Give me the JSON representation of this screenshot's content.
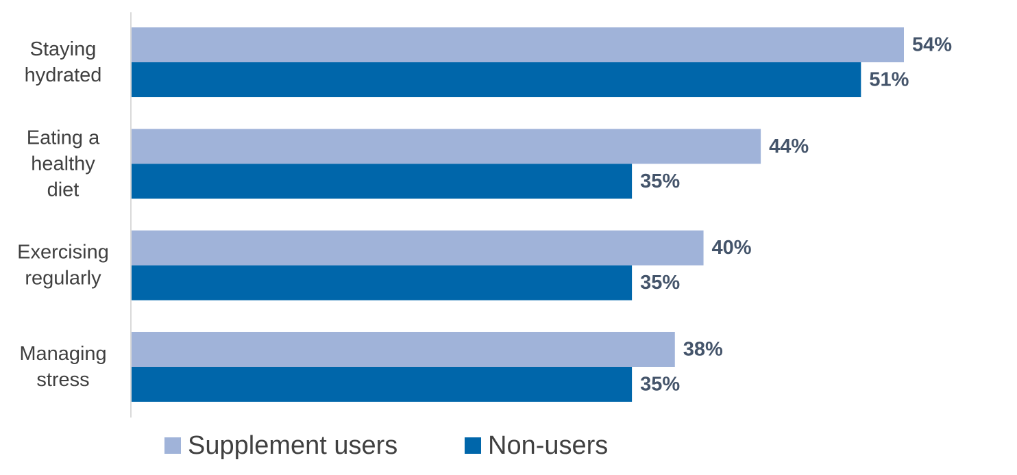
{
  "chart_data": {
    "type": "bar",
    "orientation": "horizontal",
    "categories": [
      [
        "Staying",
        "hydrated"
      ],
      [
        "Eating a",
        "healthy",
        "diet"
      ],
      [
        "Exercising",
        "regularly"
      ],
      [
        "Managing",
        "stress"
      ]
    ],
    "series": [
      {
        "name": "Supplement users",
        "color": "#A0B3D9",
        "values": [
          54,
          44,
          40,
          38
        ],
        "labels": [
          "54%",
          "44%",
          "40%",
          "38%"
        ]
      },
      {
        "name": "Non-users",
        "color": "#0066AA",
        "values": [
          51,
          35,
          35,
          35
        ],
        "labels": [
          "51%",
          "35%",
          "35%",
          "35%"
        ]
      }
    ],
    "xlim": [
      0,
      54
    ],
    "grid": false,
    "legend_position": "bottom",
    "value_label_color": "#44546A",
    "axis_color": "#D9D9D9"
  }
}
